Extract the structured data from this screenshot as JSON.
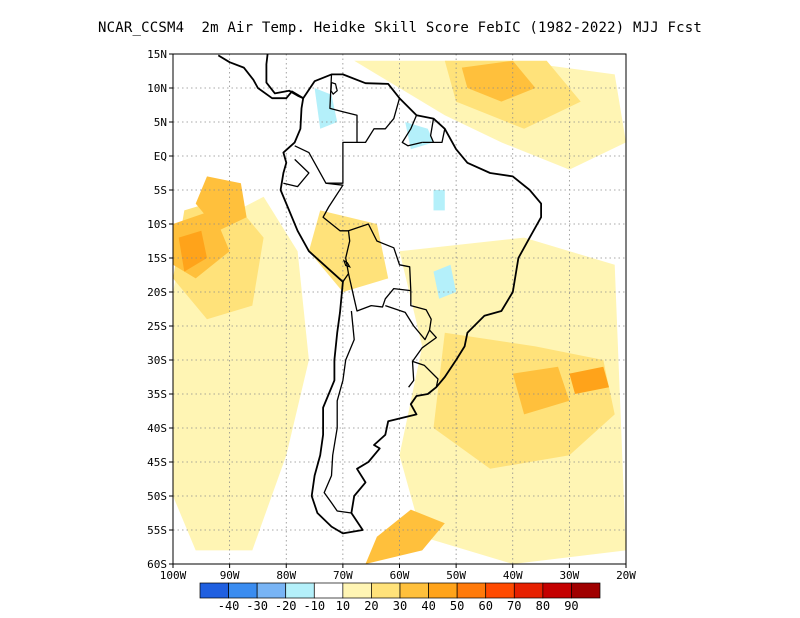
{
  "title": "NCAR_CCSM4  2m Air Temp. Heidke Skill Score FebIC (1982-2022) MJJ Fcst",
  "map": {
    "lon_range": [
      -100,
      -20
    ],
    "lat_range": [
      -60,
      15
    ],
    "lat_ticks": [
      {
        "value": 15,
        "label": "15N"
      },
      {
        "value": 10,
        "label": "10N"
      },
      {
        "value": 5,
        "label": "5N"
      },
      {
        "value": 0,
        "label": "EQ"
      },
      {
        "value": -5,
        "label": "5S"
      },
      {
        "value": -10,
        "label": "10S"
      },
      {
        "value": -15,
        "label": "15S"
      },
      {
        "value": -20,
        "label": "20S"
      },
      {
        "value": -25,
        "label": "25S"
      },
      {
        "value": -30,
        "label": "30S"
      },
      {
        "value": -35,
        "label": "35S"
      },
      {
        "value": -40,
        "label": "40S"
      },
      {
        "value": -45,
        "label": "45S"
      },
      {
        "value": -50,
        "label": "50S"
      },
      {
        "value": -55,
        "label": "55S"
      },
      {
        "value": -60,
        "label": "60S"
      }
    ],
    "lon_ticks": [
      {
        "value": -100,
        "label": "100W"
      },
      {
        "value": -90,
        "label": "90W"
      },
      {
        "value": -80,
        "label": "80W"
      },
      {
        "value": -70,
        "label": "70W"
      },
      {
        "value": -60,
        "label": "60W"
      },
      {
        "value": -50,
        "label": "50W"
      },
      {
        "value": -40,
        "label": "40W"
      },
      {
        "value": -30,
        "label": "30W"
      },
      {
        "value": -20,
        "label": "20W"
      }
    ],
    "grid": true
  },
  "colorbar": {
    "colors": [
      "#1f5fe0",
      "#3a8cf0",
      "#78b4f5",
      "#b4f0fa",
      "#ffffff",
      "#fff5b4",
      "#ffe27a",
      "#ffc03c",
      "#ffa31a",
      "#ff7a0a",
      "#ff4a00",
      "#e62000",
      "#c40000",
      "#a00000"
    ],
    "labels": [
      "-40",
      "-30",
      "-20",
      "-10",
      "10",
      "20",
      "30",
      "40",
      "50",
      "60",
      "70",
      "80",
      "90"
    ]
  },
  "skill_regions": [
    {
      "level": 10,
      "points": [
        [
          -98,
          -12
        ],
        [
          -84,
          -6
        ],
        [
          -78,
          -14
        ],
        [
          -76,
          -30
        ],
        [
          -80,
          -44
        ],
        [
          -86,
          -58
        ],
        [
          -96,
          -58
        ],
        [
          -100,
          -50
        ],
        [
          -100,
          -20
        ]
      ]
    },
    {
      "level": 10,
      "points": [
        [
          -60,
          -14
        ],
        [
          -38,
          -12
        ],
        [
          -22,
          -16
        ],
        [
          -20,
          -58
        ],
        [
          -40,
          -60
        ],
        [
          -56,
          -56
        ],
        [
          -60,
          -44
        ],
        [
          -56,
          -28
        ]
      ]
    },
    {
      "level": 10,
      "points": [
        [
          -68,
          14
        ],
        [
          -40,
          14
        ],
        [
          -22,
          12
        ],
        [
          -20,
          2
        ],
        [
          -30,
          -2
        ],
        [
          -42,
          2
        ],
        [
          -52,
          6
        ],
        [
          -60,
          10
        ]
      ]
    },
    {
      "level": 20,
      "points": [
        [
          -98,
          -8
        ],
        [
          -90,
          -6
        ],
        [
          -84,
          -12
        ],
        [
          -86,
          -22
        ],
        [
          -94,
          -24
        ],
        [
          -100,
          -18
        ]
      ]
    },
    {
      "level": 20,
      "points": [
        [
          -52,
          -26
        ],
        [
          -36,
          -28
        ],
        [
          -24,
          -30
        ],
        [
          -22,
          -38
        ],
        [
          -30,
          -44
        ],
        [
          -44,
          -46
        ],
        [
          -54,
          -40
        ]
      ]
    },
    {
      "level": 20,
      "points": [
        [
          -52,
          14
        ],
        [
          -34,
          14
        ],
        [
          -28,
          8
        ],
        [
          -38,
          4
        ],
        [
          -50,
          8
        ]
      ]
    },
    {
      "level": 20,
      "points": [
        [
          -74,
          -8
        ],
        [
          -64,
          -10
        ],
        [
          -62,
          -18
        ],
        [
          -70,
          -20
        ],
        [
          -76,
          -14
        ]
      ]
    },
    {
      "level": 30,
      "points": [
        [
          -100,
          -10
        ],
        [
          -93,
          -8
        ],
        [
          -90,
          -14
        ],
        [
          -96,
          -18
        ],
        [
          -100,
          -16
        ]
      ]
    },
    {
      "level": 30,
      "points": [
        [
          -94,
          -3
        ],
        [
          -88,
          -4
        ],
        [
          -87,
          -9
        ],
        [
          -92,
          -11
        ],
        [
          -96,
          -7
        ]
      ]
    },
    {
      "level": 30,
      "points": [
        [
          -49,
          13
        ],
        [
          -40,
          14
        ],
        [
          -36,
          10
        ],
        [
          -42,
          8
        ],
        [
          -48,
          10
        ]
      ]
    },
    {
      "level": 30,
      "points": [
        [
          -40,
          -32
        ],
        [
          -32,
          -31
        ],
        [
          -30,
          -36
        ],
        [
          -38,
          -38
        ]
      ]
    },
    {
      "level": 30,
      "points": [
        [
          -66,
          -60
        ],
        [
          -56,
          -58
        ],
        [
          -52,
          -54
        ],
        [
          -58,
          -52
        ],
        [
          -64,
          -56
        ]
      ]
    },
    {
      "level": 40,
      "points": [
        [
          -99,
          -12
        ],
        [
          -95,
          -11
        ],
        [
          -94,
          -15
        ],
        [
          -98,
          -17
        ]
      ]
    },
    {
      "level": 40,
      "points": [
        [
          -30,
          -32
        ],
        [
          -24,
          -31
        ],
        [
          -23,
          -34
        ],
        [
          -29,
          -35
        ]
      ]
    }
  ],
  "neg_regions": [
    {
      "points": [
        [
          -75,
          10
        ],
        [
          -72,
          9
        ],
        [
          -71,
          5
        ],
        [
          -74,
          4
        ]
      ]
    },
    {
      "points": [
        [
          -59,
          5
        ],
        [
          -55,
          4
        ],
        [
          -54,
          2
        ],
        [
          -58,
          1
        ]
      ]
    },
    {
      "points": [
        [
          -54,
          -17
        ],
        [
          -51,
          -16
        ],
        [
          -50,
          -20
        ],
        [
          -53,
          -21
        ]
      ]
    },
    {
      "points": [
        [
          -54,
          -5
        ],
        [
          -52,
          -5
        ],
        [
          -52,
          -8
        ],
        [
          -54,
          -8
        ]
      ]
    }
  ],
  "coastline": {
    "south_america": [
      [
        -77,
        8.5
      ],
      [
        -75,
        11
      ],
      [
        -72,
        12
      ],
      [
        -70,
        12
      ],
      [
        -66,
        10.7
      ],
      [
        -62,
        10.6
      ],
      [
        -60,
        8.5
      ],
      [
        -57,
        6
      ],
      [
        -54,
        5.5
      ],
      [
        -52,
        4
      ],
      [
        -50,
        1
      ],
      [
        -48,
        -1
      ],
      [
        -44,
        -2.5
      ],
      [
        -40,
        -3
      ],
      [
        -37,
        -5
      ],
      [
        -35,
        -7
      ],
      [
        -35,
        -9
      ],
      [
        -37,
        -12
      ],
      [
        -39,
        -15
      ],
      [
        -40,
        -20
      ],
      [
        -42,
        -22.8
      ],
      [
        -45,
        -23.5
      ],
      [
        -48,
        -26
      ],
      [
        -48.5,
        -28
      ],
      [
        -50,
        -30
      ],
      [
        -52,
        -32.5
      ],
      [
        -53.5,
        -34
      ],
      [
        -55,
        -35
      ],
      [
        -57,
        -35.3
      ],
      [
        -58,
        -36.5
      ],
      [
        -57,
        -38
      ],
      [
        -62,
        -39
      ],
      [
        -62.5,
        -41
      ],
      [
        -64.5,
        -42.5
      ],
      [
        -63.5,
        -43
      ],
      [
        -65.5,
        -45
      ],
      [
        -67.5,
        -46
      ],
      [
        -66,
        -48
      ],
      [
        -68,
        -50
      ],
      [
        -68.5,
        -52.5
      ],
      [
        -66.5,
        -55
      ],
      [
        -70,
        -55.5
      ],
      [
        -72,
        -54.5
      ],
      [
        -74.5,
        -52.5
      ],
      [
        -75.5,
        -50
      ],
      [
        -75,
        -47
      ],
      [
        -74,
        -44
      ],
      [
        -73.5,
        -41
      ],
      [
        -73.5,
        -37
      ],
      [
        -71.5,
        -33
      ],
      [
        -71.5,
        -30
      ],
      [
        -71,
        -26
      ],
      [
        -70.5,
        -23
      ],
      [
        -70,
        -18.5
      ],
      [
        -72,
        -17
      ],
      [
        -76,
        -14
      ],
      [
        -78,
        -11
      ],
      [
        -80,
        -7
      ],
      [
        -81,
        -5
      ],
      [
        -80.5,
        -2.5
      ],
      [
        -80,
        -1
      ],
      [
        -80.5,
        0.5
      ],
      [
        -78.5,
        2
      ],
      [
        -77.5,
        4
      ],
      [
        -77.3,
        7
      ],
      [
        -77,
        8.5
      ]
    ],
    "central_america": [
      [
        -77,
        8.5
      ],
      [
        -79,
        9.5
      ],
      [
        -80,
        8.5
      ],
      [
        -82.5,
        8.5
      ],
      [
        -85,
        10
      ],
      [
        -85.8,
        11.2
      ],
      [
        -87.5,
        13
      ],
      [
        -90,
        13.8
      ],
      [
        -92,
        14.8
      ]
    ],
    "caribbean_coast": [
      [
        -77,
        8.5
      ],
      [
        -77.8,
        8.8
      ],
      [
        -79.5,
        9.6
      ],
      [
        -82,
        9.2
      ],
      [
        -83.5,
        10.8
      ],
      [
        -83.5,
        13.5
      ],
      [
        -83.3,
        15
      ],
      [
        -85,
        15.8
      ],
      [
        -88,
        15.8
      ]
    ]
  },
  "borders": [
    [
      [
        -72,
        12
      ],
      [
        -72.3,
        7
      ],
      [
        -70,
        6.5
      ],
      [
        -67.5,
        6
      ],
      [
        -67.5,
        2
      ],
      [
        -70,
        2
      ],
      [
        -70,
        -4
      ],
      [
        -73,
        -4
      ],
      [
        -75,
        -1
      ],
      [
        -76,
        0.5
      ],
      [
        -78.5,
        1.5
      ]
    ],
    [
      [
        -78.5,
        -0.5
      ],
      [
        -76,
        -2.5
      ],
      [
        -78,
        -4.5
      ],
      [
        -80.5,
        -4
      ]
    ],
    [
      [
        -60,
        8.5
      ],
      [
        -61,
        5.5
      ],
      [
        -62.5,
        4
      ],
      [
        -64.5,
        4
      ],
      [
        -66,
        2
      ],
      [
        -67.5,
        2
      ]
    ],
    [
      [
        -57,
        6
      ],
      [
        -58,
        4
      ],
      [
        -59.5,
        2
      ],
      [
        -58.5,
        1.5
      ],
      [
        -56,
        2
      ]
    ],
    [
      [
        -54,
        5.5
      ],
      [
        -54.5,
        3
      ],
      [
        -54,
        2
      ]
    ],
    [
      [
        -52,
        4
      ],
      [
        -52.5,
        2
      ],
      [
        -54,
        2
      ],
      [
        -56,
        2
      ]
    ],
    [
      [
        -73,
        -4
      ],
      [
        -70,
        -4.3
      ],
      [
        -72.5,
        -7.5
      ],
      [
        -73.5,
        -9
      ],
      [
        -70.5,
        -11
      ],
      [
        -69,
        -11
      ],
      [
        -68.8,
        -12.5
      ],
      [
        -69.5,
        -15
      ],
      [
        -69,
        -17.3
      ],
      [
        -70,
        -18.5
      ]
    ],
    [
      [
        -69,
        -11
      ],
      [
        -65.5,
        -10
      ],
      [
        -64,
        -12.5
      ],
      [
        -61,
        -13.5
      ],
      [
        -60,
        -16
      ],
      [
        -58.2,
        -16.3
      ],
      [
        -58,
        -19.8
      ]
    ],
    [
      [
        -69,
        -17.3
      ],
      [
        -68,
        -21
      ],
      [
        -67.5,
        -22.8
      ],
      [
        -65,
        -22
      ],
      [
        -63,
        -22.2
      ],
      [
        -62.5,
        -21
      ],
      [
        -61,
        -19.5
      ],
      [
        -58,
        -19.8
      ]
    ],
    [
      [
        -68.5,
        -22.8
      ],
      [
        -68,
        -27
      ],
      [
        -69.5,
        -30
      ],
      [
        -70,
        -33
      ],
      [
        -71,
        -36
      ],
      [
        -71,
        -40
      ],
      [
        -71.8,
        -44
      ],
      [
        -72,
        -47
      ],
      [
        -73.3,
        -49.5
      ],
      [
        -72,
        -51
      ],
      [
        -71,
        -52.2
      ],
      [
        -68.5,
        -52.5
      ]
    ],
    [
      [
        -62.5,
        -22
      ],
      [
        -59,
        -23
      ],
      [
        -57.5,
        -25
      ],
      [
        -55.5,
        -27
      ],
      [
        -54.7,
        -25.6
      ],
      [
        -54.4,
        -24
      ],
      [
        -55.3,
        -22.6
      ],
      [
        -58,
        -22
      ],
      [
        -58,
        -19.8
      ]
    ],
    [
      [
        -54.7,
        -25.6
      ],
      [
        -53.5,
        -26.7
      ],
      [
        -56,
        -28.2
      ],
      [
        -57.7,
        -30.2
      ],
      [
        -57.5,
        -33
      ],
      [
        -58.4,
        -34
      ]
    ],
    [
      [
        -57.7,
        -30.2
      ],
      [
        -55.6,
        -30.8
      ],
      [
        -53.2,
        -32.8
      ],
      [
        -53.5,
        -34
      ]
    ]
  ],
  "lakes": [
    {
      "points": [
        [
          -72,
          10.8
        ],
        [
          -71.3,
          10.6
        ],
        [
          -71,
          9.6
        ],
        [
          -71.7,
          9.1
        ],
        [
          -72.1,
          9.6
        ]
      ]
    },
    {
      "points": [
        [
          -69.8,
          -15.4
        ],
        [
          -69.2,
          -15.7
        ],
        [
          -68.8,
          -16.3
        ],
        [
          -69.5,
          -16.1
        ]
      ]
    }
  ]
}
